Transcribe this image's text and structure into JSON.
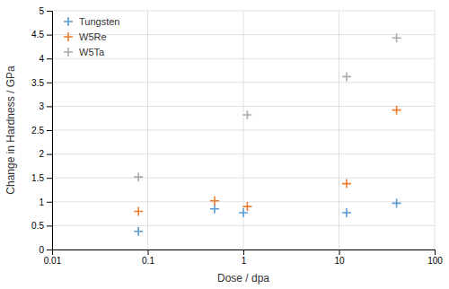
{
  "chart_data": {
    "type": "scatter",
    "x_label": "Dose / dpa",
    "y_label": "Change in Hardness / GPa",
    "series": [
      {
        "name": "Tungsten",
        "color": "#5B9BD5",
        "x": [
          0.08,
          0.5,
          1.0,
          12.0,
          40.0
        ],
        "values": [
          0.38,
          0.85,
          0.77,
          0.77,
          0.97
        ]
      },
      {
        "name": "W5Re",
        "color": "#ED7D31",
        "x": [
          0.08,
          0.5,
          1.1,
          12.0,
          40.0
        ],
        "values": [
          0.8,
          1.02,
          0.9,
          1.38,
          2.92
        ]
      },
      {
        "name": "W5Ta",
        "color": "#ABABAB",
        "x": [
          0.08,
          1.1,
          12.0,
          40.0
        ],
        "values": [
          1.52,
          2.82,
          3.62,
          4.43
        ]
      }
    ],
    "xlim": [
      0.01,
      100
    ],
    "ylim": [
      0,
      5
    ],
    "xticks": [
      0.01,
      0.1,
      1,
      10,
      100
    ],
    "yticks": [
      0,
      0.5,
      1,
      1.5,
      2,
      2.5,
      3,
      3.5,
      4,
      4.5,
      5
    ],
    "log": "x",
    "grid": true,
    "legend": "upper left",
    "marker": "plus"
  }
}
